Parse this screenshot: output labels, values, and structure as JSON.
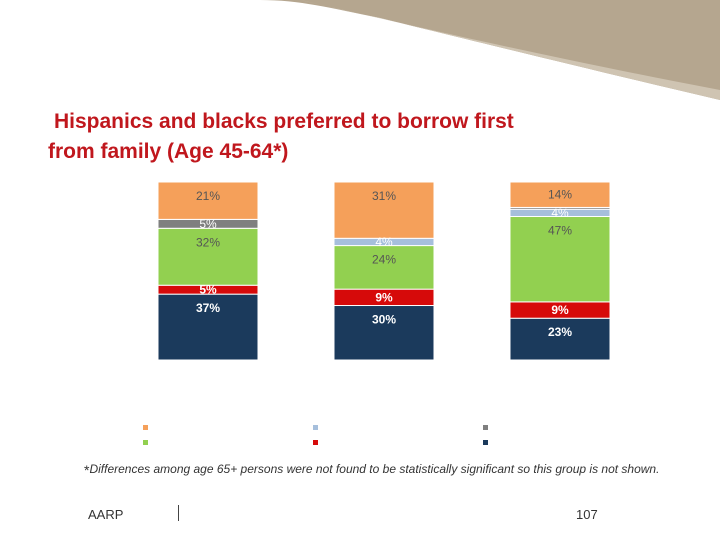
{
  "slide": {
    "title_line1": "Hispanics and blacks preferred to borrow first",
    "title_line2": "from family (Age 45-64*)",
    "footnote_marker": "*",
    "footnote": "Differences among age 65+ persons were not found to be statistically significant so this group is not shown.",
    "footer_org": "AARP",
    "page_number": "107"
  },
  "colors": {
    "banner": "#b5a68f",
    "title": "#c0171d"
  },
  "chart_data": {
    "type": "bar",
    "stacked": true,
    "normalized_to_percent": true,
    "categories": [
      "",
      "",
      ""
    ],
    "series": [
      {
        "name": "",
        "color": "#1b3a5c",
        "values": [
          37,
          30,
          23
        ],
        "labels": [
          "37%",
          "30%",
          "23%"
        ]
      },
      {
        "name": "",
        "color": "#d60a0a",
        "values": [
          5,
          9,
          9
        ],
        "labels": [
          "5%",
          "9%",
          "9%"
        ]
      },
      {
        "name": "",
        "color": "#92d050",
        "values": [
          32,
          24,
          47
        ],
        "labels": [
          "32%",
          "24%",
          "47%"
        ]
      },
      {
        "name": "",
        "color": "#a6bfdc",
        "values": [
          0,
          4,
          4
        ],
        "labels": [
          "",
          "4%",
          "4%"
        ]
      },
      {
        "name": "",
        "color": "#7f7f7f",
        "values": [
          5,
          0,
          1
        ],
        "labels": [
          "5%",
          "",
          ""
        ]
      },
      {
        "name": "",
        "color": "#f5a05a",
        "values": [
          21,
          31,
          14
        ],
        "labels": [
          "21%",
          "31%",
          "14%"
        ]
      }
    ],
    "legend": {
      "placement": "bottom",
      "swatches": [
        [
          "#f5a05a",
          "#a6bfdc",
          "#7f7f7f"
        ],
        [
          "#92d050",
          "#d60a0a",
          "#1b3a5c"
        ]
      ]
    },
    "grid": false
  }
}
